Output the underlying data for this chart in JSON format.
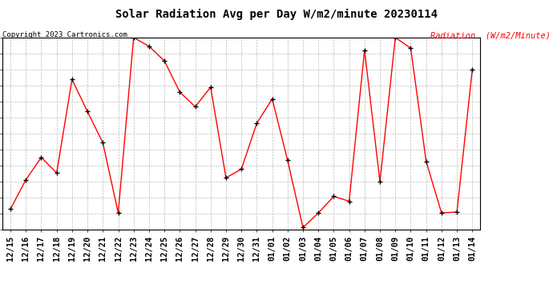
{
  "title": "Solar Radiation Avg per Day W/m2/minute 20230114",
  "copyright": "Copyright 2023 Cartronics.com",
  "legend_label": "Radiation  (W/m2/Minute)",
  "dates": [
    "12/15",
    "12/16",
    "12/17",
    "12/18",
    "12/19",
    "12/20",
    "12/21",
    "12/22",
    "12/23",
    "12/24",
    "12/25",
    "12/26",
    "12/27",
    "12/28",
    "12/29",
    "12/30",
    "12/31",
    "01/01",
    "01/02",
    "01/03",
    "01/04",
    "01/05",
    "01/06",
    "01/07",
    "01/08",
    "01/09",
    "01/10",
    "01/11",
    "01/12",
    "01/13",
    "01/14"
  ],
  "values": [
    50.0,
    80.0,
    103.0,
    87.0,
    183.0,
    150.0,
    118.0,
    46.0,
    226.0,
    217.0,
    202.0,
    170.0,
    155.0,
    175.0,
    82.0,
    91.0,
    138.0,
    163.0,
    100.0,
    31.0,
    46.0,
    63.0,
    58.0,
    213.0,
    78.0,
    226.0,
    215.0,
    99.0,
    46.0,
    47.0,
    193.0
  ],
  "ylim": [
    29.0,
    226.0
  ],
  "yticks": [
    29.0,
    45.4,
    61.8,
    78.2,
    94.7,
    111.1,
    127.5,
    143.9,
    160.3,
    176.8,
    193.2,
    209.6,
    226.0
  ],
  "line_color": "red",
  "marker_color": "black",
  "background_color": "#ffffff",
  "grid_color": "#bbbbbb",
  "title_fontsize": 10,
  "tick_fontsize": 7.5,
  "copyright_color": "black",
  "legend_color": "red"
}
